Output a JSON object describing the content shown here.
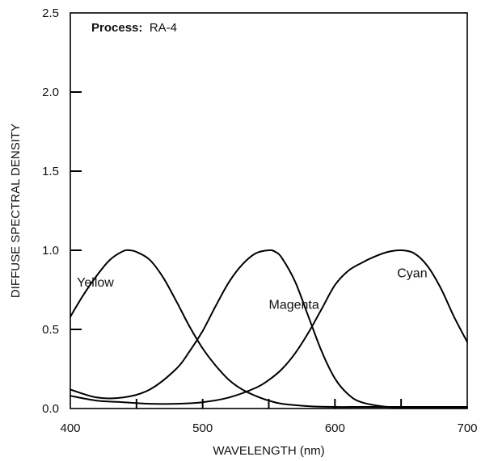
{
  "chart_data": {
    "type": "line",
    "xlabel": "WAVELENGTH (nm)",
    "ylabel": "DIFFUSE SPECTRAL DENSITY",
    "xlim": [
      400,
      700
    ],
    "ylim": [
      0,
      2.5
    ],
    "x_ticks": [
      400,
      500,
      600,
      700
    ],
    "x_tick_labels": [
      "400",
      "500",
      "600",
      "700"
    ],
    "y_ticks": [
      0,
      0.5,
      1.0,
      1.5,
      2.0,
      2.5
    ],
    "y_tick_labels": [
      "0.0",
      "0.5",
      "1.0",
      "1.5",
      "2.0",
      "2.5"
    ],
    "grid": false,
    "annotation": {
      "key": "Process:",
      "value": "RA-4"
    },
    "series": [
      {
        "name": "Yellow",
        "x": [
          400,
          410,
          420,
          430,
          440,
          445,
          450,
          460,
          470,
          480,
          490,
          500,
          510,
          520,
          530,
          540,
          550,
          560,
          580,
          600,
          620,
          650,
          680,
          700
        ],
        "y": [
          0.58,
          0.72,
          0.84,
          0.94,
          0.995,
          1.0,
          0.99,
          0.94,
          0.83,
          0.68,
          0.52,
          0.38,
          0.27,
          0.18,
          0.12,
          0.08,
          0.05,
          0.03,
          0.015,
          0.01,
          0.01,
          0.01,
          0.01,
          0.01
        ]
      },
      {
        "name": "Magenta",
        "x": [
          400,
          420,
          440,
          460,
          480,
          490,
          500,
          510,
          520,
          530,
          540,
          550,
          555,
          560,
          570,
          580,
          590,
          600,
          610,
          620,
          640,
          660,
          680,
          700
        ],
        "y": [
          0.12,
          0.07,
          0.07,
          0.12,
          0.25,
          0.36,
          0.49,
          0.65,
          0.8,
          0.91,
          0.98,
          1.0,
          0.99,
          0.95,
          0.8,
          0.58,
          0.36,
          0.19,
          0.09,
          0.04,
          0.01,
          0.005,
          0.005,
          0.005
        ]
      },
      {
        "name": "Cyan",
        "x": [
          400,
          420,
          440,
          460,
          480,
          500,
          520,
          540,
          550,
          560,
          570,
          580,
          590,
          600,
          610,
          620,
          630,
          640,
          650,
          660,
          670,
          680,
          690,
          700
        ],
        "y": [
          0.08,
          0.05,
          0.04,
          0.03,
          0.03,
          0.04,
          0.07,
          0.13,
          0.18,
          0.25,
          0.35,
          0.48,
          0.63,
          0.78,
          0.87,
          0.92,
          0.96,
          0.99,
          1.0,
          0.98,
          0.9,
          0.76,
          0.58,
          0.42
        ]
      }
    ],
    "curve_labels": [
      {
        "text": "Yellow",
        "x": 405,
        "y": 0.77
      },
      {
        "text": "Magenta",
        "x": 550,
        "y": 0.63
      },
      {
        "text": "Cyan",
        "x": 647,
        "y": 0.83
      }
    ]
  }
}
